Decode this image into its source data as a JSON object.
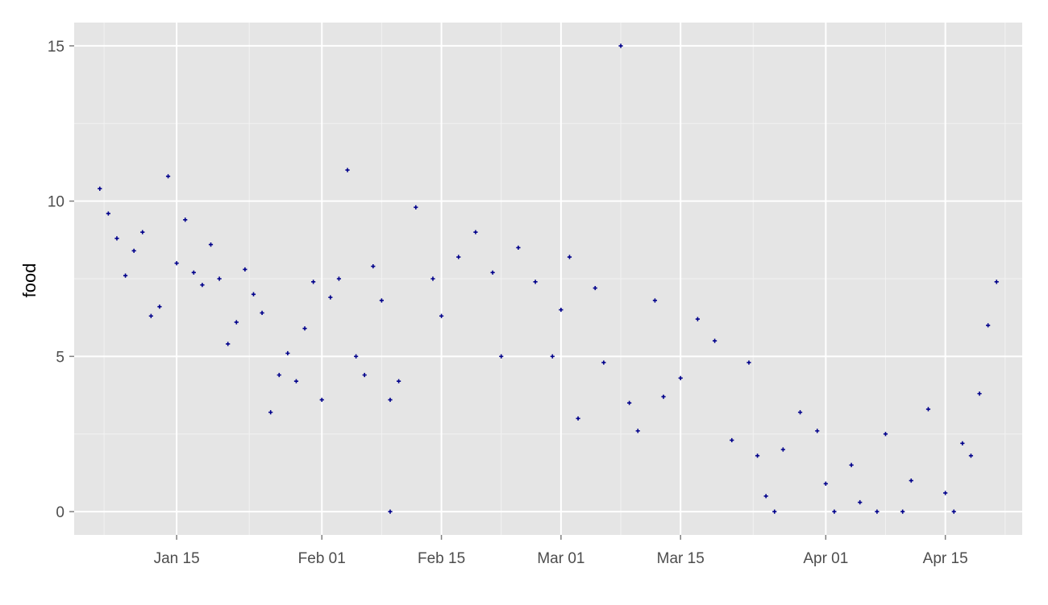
{
  "chart_data": {
    "type": "scatter",
    "title": "",
    "xlabel": "",
    "ylabel": "food",
    "x_axis": "date",
    "xlim": [
      "2015-01-03",
      "2015-04-24"
    ],
    "ylim": [
      -0.75,
      15.75
    ],
    "x_ticks": [
      {
        "date": "2015-01-15",
        "label": "Jan 15"
      },
      {
        "date": "2015-02-01",
        "label": "Feb 01"
      },
      {
        "date": "2015-02-15",
        "label": "Feb 15"
      },
      {
        "date": "2015-03-01",
        "label": "Mar 01"
      },
      {
        "date": "2015-03-15",
        "label": "Mar 15"
      },
      {
        "date": "2015-04-01",
        "label": "Apr 01"
      },
      {
        "date": "2015-04-15",
        "label": "Apr 15"
      }
    ],
    "y_ticks": [
      {
        "value": 0,
        "label": "0"
      },
      {
        "value": 5,
        "label": "5"
      },
      {
        "value": 10,
        "label": "10"
      },
      {
        "value": 15,
        "label": "15"
      }
    ],
    "grid": true,
    "legend": "none",
    "marker": "cross",
    "colors": {
      "panel": "#e5e5e5",
      "grid_major": "#ffffff",
      "grid_minor": "#f2f2f2",
      "points": "#00008b"
    },
    "points": [
      {
        "x": "2015-01-06",
        "y": 10.4
      },
      {
        "x": "2015-01-07",
        "y": 9.6
      },
      {
        "x": "2015-01-08",
        "y": 8.8
      },
      {
        "x": "2015-01-09",
        "y": 7.6
      },
      {
        "x": "2015-01-10",
        "y": 8.4
      },
      {
        "x": "2015-01-11",
        "y": 9.0
      },
      {
        "x": "2015-01-12",
        "y": 6.3
      },
      {
        "x": "2015-01-13",
        "y": 6.6
      },
      {
        "x": "2015-01-14",
        "y": 10.8
      },
      {
        "x": "2015-01-15",
        "y": 8.0
      },
      {
        "x": "2015-01-16",
        "y": 9.4
      },
      {
        "x": "2015-01-17",
        "y": 7.7
      },
      {
        "x": "2015-01-18",
        "y": 7.3
      },
      {
        "x": "2015-01-19",
        "y": 8.6
      },
      {
        "x": "2015-01-20",
        "y": 7.5
      },
      {
        "x": "2015-01-21",
        "y": 5.4
      },
      {
        "x": "2015-01-22",
        "y": 6.1
      },
      {
        "x": "2015-01-23",
        "y": 7.8
      },
      {
        "x": "2015-01-24",
        "y": 7.0
      },
      {
        "x": "2015-01-25",
        "y": 6.4
      },
      {
        "x": "2015-01-26",
        "y": 3.2
      },
      {
        "x": "2015-01-27",
        "y": 4.4
      },
      {
        "x": "2015-01-28",
        "y": 5.1
      },
      {
        "x": "2015-01-29",
        "y": 4.2
      },
      {
        "x": "2015-01-30",
        "y": 5.9
      },
      {
        "x": "2015-01-31",
        "y": 7.4
      },
      {
        "x": "2015-02-01",
        "y": 3.6
      },
      {
        "x": "2015-02-02",
        "y": 6.9
      },
      {
        "x": "2015-02-03",
        "y": 7.5
      },
      {
        "x": "2015-02-04",
        "y": 11.0
      },
      {
        "x": "2015-02-05",
        "y": 5.0
      },
      {
        "x": "2015-02-06",
        "y": 4.4
      },
      {
        "x": "2015-02-07",
        "y": 7.9
      },
      {
        "x": "2015-02-08",
        "y": 6.8
      },
      {
        "x": "2015-02-09",
        "y": 0.0
      },
      {
        "x": "2015-02-09",
        "y": 3.6
      },
      {
        "x": "2015-02-10",
        "y": 4.2
      },
      {
        "x": "2015-02-12",
        "y": 9.8
      },
      {
        "x": "2015-02-14",
        "y": 7.5
      },
      {
        "x": "2015-02-15",
        "y": 6.3
      },
      {
        "x": "2015-02-17",
        "y": 8.2
      },
      {
        "x": "2015-02-19",
        "y": 9.0
      },
      {
        "x": "2015-02-21",
        "y": 7.7
      },
      {
        "x": "2015-02-22",
        "y": 5.0
      },
      {
        "x": "2015-02-24",
        "y": 8.5
      },
      {
        "x": "2015-02-26",
        "y": 7.4
      },
      {
        "x": "2015-02-28",
        "y": 5.0
      },
      {
        "x": "2015-03-01",
        "y": 6.5
      },
      {
        "x": "2015-03-02",
        "y": 8.2
      },
      {
        "x": "2015-03-03",
        "y": 3.0
      },
      {
        "x": "2015-03-05",
        "y": 7.2
      },
      {
        "x": "2015-03-06",
        "y": 4.8
      },
      {
        "x": "2015-03-08",
        "y": 15.0
      },
      {
        "x": "2015-03-09",
        "y": 3.5
      },
      {
        "x": "2015-03-10",
        "y": 2.6
      },
      {
        "x": "2015-03-12",
        "y": 6.8
      },
      {
        "x": "2015-03-13",
        "y": 3.7
      },
      {
        "x": "2015-03-15",
        "y": 4.3
      },
      {
        "x": "2015-03-17",
        "y": 6.2
      },
      {
        "x": "2015-03-19",
        "y": 5.5
      },
      {
        "x": "2015-03-21",
        "y": 2.3
      },
      {
        "x": "2015-03-23",
        "y": 4.8
      },
      {
        "x": "2015-03-24",
        "y": 1.8
      },
      {
        "x": "2015-03-25",
        "y": 0.5
      },
      {
        "x": "2015-03-26",
        "y": 0.0
      },
      {
        "x": "2015-03-27",
        "y": 2.0
      },
      {
        "x": "2015-03-29",
        "y": 3.2
      },
      {
        "x": "2015-03-31",
        "y": 2.6
      },
      {
        "x": "2015-04-01",
        "y": 0.9
      },
      {
        "x": "2015-04-02",
        "y": 0.0
      },
      {
        "x": "2015-04-04",
        "y": 1.5
      },
      {
        "x": "2015-04-05",
        "y": 0.3
      },
      {
        "x": "2015-04-07",
        "y": 0.0
      },
      {
        "x": "2015-04-08",
        "y": 2.5
      },
      {
        "x": "2015-04-10",
        "y": 0.0
      },
      {
        "x": "2015-04-11",
        "y": 1.0
      },
      {
        "x": "2015-04-13",
        "y": 3.3
      },
      {
        "x": "2015-04-15",
        "y": 0.6
      },
      {
        "x": "2015-04-16",
        "y": 0.0
      },
      {
        "x": "2015-04-17",
        "y": 2.2
      },
      {
        "x": "2015-04-18",
        "y": 1.8
      },
      {
        "x": "2015-04-19",
        "y": 3.8
      },
      {
        "x": "2015-04-20",
        "y": 6.0
      },
      {
        "x": "2015-04-21",
        "y": 7.4
      }
    ]
  }
}
